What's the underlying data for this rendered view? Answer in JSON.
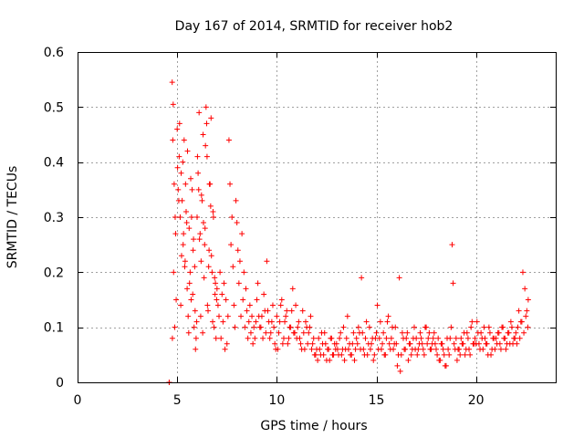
{
  "chart_data": {
    "type": "scatter",
    "title": "Day 167 of 2014, SRMTID for receiver hob2",
    "xlabel": "GPS time / hours",
    "ylabel": "SRMTID / TECUs",
    "xlim": [
      0,
      24
    ],
    "ylim": [
      0,
      0.6
    ],
    "xticks": [
      0,
      5,
      10,
      15,
      20
    ],
    "xtick_labels": [
      "0",
      "5",
      "10",
      "15",
      "20"
    ],
    "yticks": [
      0,
      0.1,
      0.2,
      0.3,
      0.4,
      0.5,
      0.6
    ],
    "ytick_labels": [
      "0",
      "0.1",
      "0.2",
      "0.3",
      "0.4",
      "0.5",
      "0.6"
    ],
    "grid": true,
    "marker": "+",
    "series": [
      {
        "name": "SRMTID",
        "color": "#ff0000",
        "x": [
          4.6,
          4.6,
          4.75,
          4.8,
          4.78,
          4.85,
          4.9,
          4.82,
          4.95,
          4.88,
          4.76,
          4.92,
          5.0,
          5.05,
          5.1,
          5.15,
          5.2,
          5.25,
          5.3,
          5.35,
          5.4,
          5.45,
          5.5,
          5.55,
          5.6,
          5.65,
          5.7,
          5.75,
          5.8,
          5.85,
          5.9,
          5.95,
          5.02,
          5.12,
          5.22,
          5.32,
          5.42,
          5.52,
          5.62,
          5.72,
          5.82,
          5.92,
          5.08,
          5.18,
          5.28,
          5.38,
          5.48,
          5.58,
          5.68,
          5.78,
          5.88,
          5.98,
          6.0,
          6.05,
          6.1,
          6.15,
          6.2,
          6.25,
          6.3,
          6.35,
          6.4,
          6.45,
          6.5,
          6.55,
          6.6,
          6.65,
          6.7,
          6.75,
          6.8,
          6.85,
          6.9,
          6.95,
          6.02,
          6.12,
          6.22,
          6.32,
          6.42,
          6.52,
          6.62,
          6.72,
          6.82,
          6.92,
          6.08,
          6.18,
          6.28,
          6.38,
          6.48,
          6.58,
          6.68,
          6.78,
          6.88,
          6.98,
          7.0,
          7.05,
          7.1,
          7.15,
          7.2,
          7.25,
          7.3,
          7.35,
          7.4,
          7.45,
          7.5,
          7.55,
          7.6,
          7.65,
          7.7,
          7.75,
          7.8,
          7.85,
          7.9,
          7.95,
          8.0,
          8.05,
          8.1,
          8.15,
          8.2,
          8.25,
          8.3,
          8.35,
          8.4,
          8.45,
          8.5,
          8.55,
          8.6,
          8.65,
          8.7,
          8.75,
          8.8,
          8.85,
          8.9,
          8.95,
          9.0,
          9.1,
          9.2,
          9.3,
          9.4,
          9.5,
          9.6,
          9.7,
          9.8,
          9.9,
          9.05,
          9.15,
          9.25,
          9.35,
          9.45,
          9.55,
          9.65,
          9.75,
          9.85,
          9.95,
          10.0,
          10.1,
          10.2,
          10.3,
          10.4,
          10.5,
          10.6,
          10.7,
          10.8,
          10.9,
          10.05,
          10.15,
          10.25,
          10.35,
          10.45,
          10.55,
          10.65,
          10.75,
          10.85,
          10.95,
          11.0,
          11.1,
          11.2,
          11.3,
          11.4,
          11.5,
          11.6,
          11.7,
          11.8,
          11.9,
          11.05,
          11.15,
          11.25,
          11.35,
          11.45,
          11.55,
          11.65,
          11.75,
          11.85,
          11.95,
          12.0,
          12.1,
          12.2,
          12.3,
          12.4,
          12.5,
          12.6,
          12.7,
          12.8,
          12.9,
          12.05,
          12.15,
          12.25,
          12.35,
          12.45,
          12.55,
          12.65,
          12.75,
          12.85,
          12.95,
          13.0,
          13.1,
          13.2,
          13.3,
          13.4,
          13.5,
          13.6,
          13.7,
          13.8,
          13.9,
          13.05,
          13.15,
          13.25,
          13.35,
          13.45,
          13.55,
          13.65,
          13.75,
          13.85,
          13.95,
          14.0,
          14.1,
          14.2,
          14.3,
          14.4,
          14.5,
          14.6,
          14.7,
          14.8,
          14.9,
          14.05,
          14.15,
          14.25,
          14.35,
          14.45,
          14.55,
          14.65,
          14.75,
          14.85,
          14.95,
          15.0,
          15.1,
          15.2,
          15.3,
          15.4,
          15.5,
          15.6,
          15.7,
          15.8,
          15.9,
          15.05,
          15.15,
          15.25,
          15.35,
          15.45,
          15.55,
          15.65,
          15.75,
          15.85,
          15.95,
          16.0,
          16.1,
          16.2,
          16.3,
          16.4,
          16.5,
          16.6,
          16.7,
          16.8,
          16.9,
          16.05,
          16.15,
          16.25,
          16.35,
          16.45,
          16.55,
          16.65,
          16.75,
          16.85,
          16.95,
          17.0,
          17.1,
          17.2,
          17.3,
          17.4,
          17.5,
          17.6,
          17.7,
          17.8,
          17.9,
          17.05,
          17.15,
          17.25,
          17.35,
          17.45,
          17.55,
          17.65,
          17.75,
          17.85,
          17.95,
          18.0,
          18.1,
          18.2,
          18.3,
          18.4,
          18.5,
          18.6,
          18.7,
          18.8,
          18.9,
          18.05,
          18.15,
          18.25,
          18.35,
          18.45,
          18.55,
          18.65,
          18.75,
          18.85,
          18.95,
          19.0,
          19.1,
          19.2,
          19.3,
          19.4,
          19.5,
          19.6,
          19.7,
          19.8,
          19.9,
          19.05,
          19.15,
          19.25,
          19.35,
          19.45,
          19.55,
          19.65,
          19.75,
          19.85,
          19.95,
          20.0,
          20.1,
          20.2,
          20.3,
          20.4,
          20.5,
          20.6,
          20.7,
          20.8,
          20.9,
          20.05,
          20.15,
          20.25,
          20.35,
          20.45,
          20.55,
          20.65,
          20.75,
          20.85,
          20.95,
          21.0,
          21.1,
          21.2,
          21.3,
          21.4,
          21.5,
          21.6,
          21.7,
          21.8,
          21.9,
          21.05,
          21.15,
          21.25,
          21.35,
          21.45,
          21.55,
          21.65,
          21.75,
          21.85,
          21.95,
          22.0,
          22.1,
          22.2,
          22.3,
          22.4,
          22.5,
          22.6,
          22.05,
          22.15,
          22.25,
          22.35,
          22.45,
          22.55,
          22.62
        ],
        "y": [
          0.0,
          0.0,
          0.545,
          0.505,
          0.44,
          0.36,
          0.3,
          0.2,
          0.15,
          0.1,
          0.08,
          0.27,
          0.46,
          0.35,
          0.41,
          0.3,
          0.38,
          0.33,
          0.25,
          0.44,
          0.22,
          0.31,
          0.17,
          0.12,
          0.28,
          0.2,
          0.15,
          0.35,
          0.24,
          0.1,
          0.13,
          0.08,
          0.39,
          0.47,
          0.23,
          0.27,
          0.36,
          0.42,
          0.18,
          0.3,
          0.26,
          0.06,
          0.33,
          0.14,
          0.4,
          0.21,
          0.29,
          0.09,
          0.37,
          0.16,
          0.21,
          0.11,
          0.3,
          0.38,
          0.49,
          0.27,
          0.22,
          0.33,
          0.45,
          0.19,
          0.28,
          0.5,
          0.41,
          0.13,
          0.24,
          0.36,
          0.48,
          0.2,
          0.31,
          0.1,
          0.16,
          0.08,
          0.41,
          0.26,
          0.34,
          0.29,
          0.43,
          0.14,
          0.36,
          0.23,
          0.3,
          0.18,
          0.35,
          0.12,
          0.09,
          0.25,
          0.47,
          0.21,
          0.32,
          0.11,
          0.19,
          0.15,
          0.17,
          0.14,
          0.12,
          0.2,
          0.08,
          0.16,
          0.11,
          0.18,
          0.06,
          0.15,
          0.07,
          0.12,
          0.44,
          0.36,
          0.25,
          0.3,
          0.21,
          0.14,
          0.1,
          0.33,
          0.29,
          0.24,
          0.18,
          0.22,
          0.12,
          0.27,
          0.15,
          0.2,
          0.1,
          0.17,
          0.13,
          0.08,
          0.11,
          0.14,
          0.09,
          0.12,
          0.07,
          0.1,
          0.08,
          0.11,
          0.15,
          0.12,
          0.1,
          0.08,
          0.13,
          0.22,
          0.11,
          0.09,
          0.14,
          0.07,
          0.18,
          0.1,
          0.12,
          0.16,
          0.09,
          0.13,
          0.08,
          0.11,
          0.1,
          0.06,
          0.12,
          0.09,
          0.14,
          0.07,
          0.11,
          0.13,
          0.08,
          0.1,
          0.17,
          0.09,
          0.06,
          0.11,
          0.15,
          0.08,
          0.12,
          0.07,
          0.1,
          0.13,
          0.09,
          0.14,
          0.08,
          0.11,
          0.07,
          0.13,
          0.06,
          0.1,
          0.09,
          0.12,
          0.07,
          0.05,
          0.1,
          0.08,
          0.06,
          0.09,
          0.11,
          0.07,
          0.1,
          0.06,
          0.08,
          0.05,
          0.06,
          0.08,
          0.05,
          0.07,
          0.09,
          0.04,
          0.06,
          0.08,
          0.05,
          0.07,
          0.04,
          0.06,
          0.09,
          0.05,
          0.07,
          0.06,
          0.04,
          0.08,
          0.05,
          0.06,
          0.07,
          0.05,
          0.09,
          0.06,
          0.04,
          0.08,
          0.06,
          0.05,
          0.07,
          0.04,
          0.06,
          0.08,
          0.05,
          0.1,
          0.06,
          0.12,
          0.07,
          0.05,
          0.09,
          0.06,
          0.08,
          0.1,
          0.06,
          0.09,
          0.05,
          0.11,
          0.07,
          0.06,
          0.08,
          0.05,
          0.07,
          0.09,
          0.19,
          0.06,
          0.08,
          0.05,
          0.1,
          0.07,
          0.04,
          0.08,
          0.09,
          0.06,
          0.11,
          0.07,
          0.05,
          0.08,
          0.12,
          0.06,
          0.1,
          0.07,
          0.14,
          0.08,
          0.06,
          0.09,
          0.05,
          0.11,
          0.07,
          0.08,
          0.06,
          0.1,
          0.07,
          0.05,
          0.02,
          0.09,
          0.06,
          0.08,
          0.04,
          0.07,
          0.06,
          0.1,
          0.03,
          0.19,
          0.05,
          0.08,
          0.06,
          0.09,
          0.07,
          0.05,
          0.08,
          0.06,
          0.08,
          0.06,
          0.09,
          0.07,
          0.05,
          0.1,
          0.08,
          0.06,
          0.07,
          0.09,
          0.05,
          0.07,
          0.08,
          0.06,
          0.1,
          0.07,
          0.09,
          0.06,
          0.08,
          0.07,
          0.06,
          0.08,
          0.04,
          0.07,
          0.05,
          0.03,
          0.06,
          0.08,
          0.25,
          0.07,
          0.05,
          0.04,
          0.07,
          0.06,
          0.03,
          0.08,
          0.05,
          0.1,
          0.18,
          0.06,
          0.08,
          0.06,
          0.05,
          0.07,
          0.09,
          0.06,
          0.08,
          0.05,
          0.11,
          0.07,
          0.04,
          0.06,
          0.08,
          0.07,
          0.05,
          0.09,
          0.06,
          0.1,
          0.07,
          0.08,
          0.07,
          0.09,
          0.06,
          0.08,
          0.1,
          0.07,
          0.05,
          0.09,
          0.06,
          0.08,
          0.11,
          0.07,
          0.09,
          0.06,
          0.08,
          0.07,
          0.1,
          0.05,
          0.08,
          0.06,
          0.08,
          0.09,
          0.07,
          0.1,
          0.08,
          0.06,
          0.09,
          0.07,
          0.1,
          0.08,
          0.07,
          0.09,
          0.06,
          0.1,
          0.08,
          0.07,
          0.09,
          0.11,
          0.07,
          0.08,
          0.09,
          0.1,
          0.08,
          0.11,
          0.09,
          0.12,
          0.1,
          0.07,
          0.13,
          0.11,
          0.2,
          0.17,
          0.13,
          0.15
        ]
      }
    ]
  }
}
